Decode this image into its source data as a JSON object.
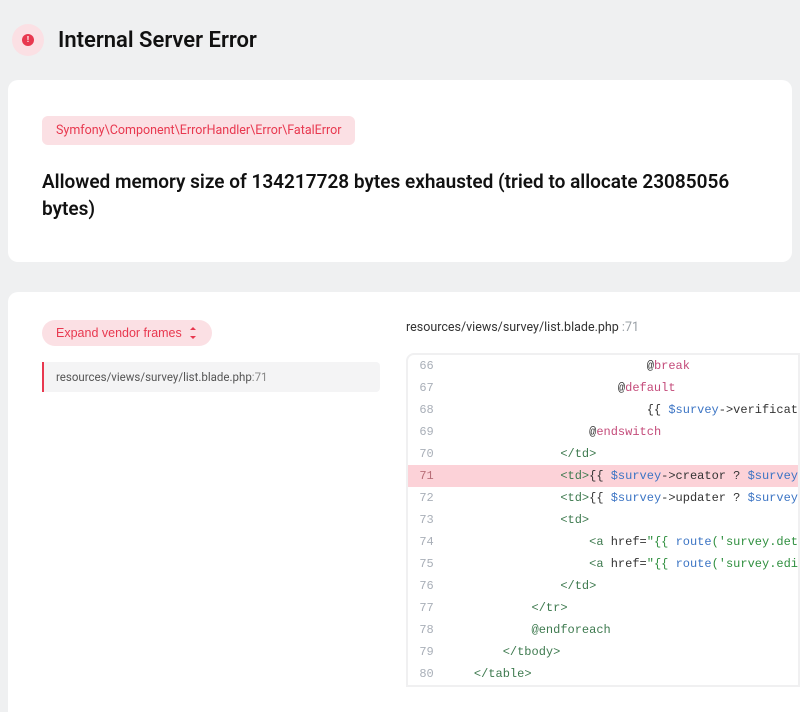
{
  "header": {
    "icon_glyph": "!",
    "title": "Internal Server Error"
  },
  "error": {
    "class": "Symfony\\Component\\ErrorHandler\\Error\\FatalError",
    "message": "Allowed memory size of 134217728 bytes exhausted (tried to allocate 23085056 bytes)"
  },
  "stack": {
    "expand_label": "Expand vendor frames",
    "active_frame": {
      "path": "resources/views/survey/list.blade.php",
      "line": 71
    },
    "code_path": "resources/views/survey/list.blade.php",
    "code_path_line": ":71",
    "highlighted_line": 71,
    "lines": [
      {
        "n": 66,
        "html": "                            @<span class='tok-kw'>break</span>"
      },
      {
        "n": 67,
        "html": "                        @<span class='tok-kw'>default</span>"
      },
      {
        "n": 68,
        "html": "                            {{ <span class='tok-var'>$survey</span>->verificat"
      },
      {
        "n": 69,
        "html": "                    @<span class='tok-kw'>endswitch</span>"
      },
      {
        "n": 70,
        "html": "                <span class='tok-tag'>&lt;/td&gt;</span>"
      },
      {
        "n": 71,
        "html": "                <span class='tok-tag'>&lt;td&gt;</span>{{ <span class='tok-var'>$survey</span>->creator ? <span class='tok-var'>$survey</span>"
      },
      {
        "n": 72,
        "html": "                <span class='tok-tag'>&lt;td&gt;</span>{{ <span class='tok-var'>$survey</span>->updater ? <span class='tok-var'>$survey</span>"
      },
      {
        "n": 73,
        "html": "                <span class='tok-tag'>&lt;td&gt;</span>"
      },
      {
        "n": 74,
        "html": "                    <span class='tok-tag'>&lt;a</span> href=<span class='tok-str'>\"{{ </span><span class='tok-var'>route</span><span class='tok-str'>('survey.det</span>"
      },
      {
        "n": 75,
        "html": "                    <span class='tok-tag'>&lt;a</span> href=<span class='tok-str'>\"{{ </span><span class='tok-var'>route</span><span class='tok-str'>('survey.edi</span>"
      },
      {
        "n": 76,
        "html": "                <span class='tok-tag'>&lt;/td&gt;</span>"
      },
      {
        "n": 77,
        "html": "            <span class='tok-tag'>&lt;/tr&gt;</span>"
      },
      {
        "n": 78,
        "html": "            <span class='tok-dir'>@endforeach</span>"
      },
      {
        "n": 79,
        "html": "        <span class='tok-tag'>&lt;/tbody&gt;</span>"
      },
      {
        "n": 80,
        "html": "    <span class='tok-tag'>&lt;/table&gt;</span>"
      }
    ]
  },
  "colors": {
    "accent": "#e8384f",
    "accent_bg": "#fbe0e4",
    "page_bg": "#eff0f1",
    "highlight_bg": "#fcd2d8"
  }
}
